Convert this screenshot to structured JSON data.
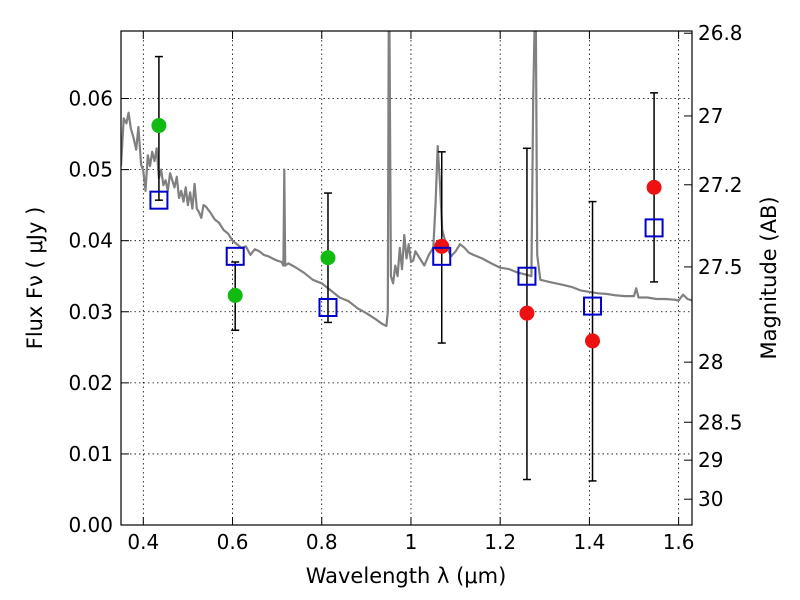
{
  "chart_data": {
    "type": "scatter",
    "xlabel": "Wavelength  λ (μm)",
    "ylabel": "Flux  Fν  ( μJy )",
    "ylabel_right": "Magnitude (AB)",
    "xlim": [
      0.35,
      1.63
    ],
    "ylim": [
      0.0,
      0.0695
    ],
    "grid": true,
    "x_ticks": [
      {
        "value": 0.4,
        "label": "0.4"
      },
      {
        "value": 0.6,
        "label": "0.6"
      },
      {
        "value": 0.8,
        "label": "0.8"
      },
      {
        "value": 1.0,
        "label": "1"
      },
      {
        "value": 1.2,
        "label": "1.2"
      },
      {
        "value": 1.4,
        "label": "1.4"
      },
      {
        "value": 1.6,
        "label": "1.6"
      }
    ],
    "y_ticks": [
      {
        "value": 0.0,
        "label": "0.00"
      },
      {
        "value": 0.01,
        "label": "0.01"
      },
      {
        "value": 0.02,
        "label": "0.02"
      },
      {
        "value": 0.03,
        "label": "0.03"
      },
      {
        "value": 0.04,
        "label": "0.04"
      },
      {
        "value": 0.05,
        "label": "0.05"
      },
      {
        "value": 0.06,
        "label": "0.06"
      }
    ],
    "y_right_ticks": [
      {
        "value": 26.8,
        "label": "26.8"
      },
      {
        "value": 27.0,
        "label": "27"
      },
      {
        "value": 27.2,
        "label": "27.2"
      },
      {
        "value": 27.5,
        "label": "27.5"
      },
      {
        "value": 28.0,
        "label": "28"
      },
      {
        "value": 28.5,
        "label": "28.5"
      },
      {
        "value": 29.0,
        "label": "29"
      },
      {
        "value": 30.0,
        "label": "30"
      }
    ],
    "colors": {
      "green": "#11bb11",
      "red": "#ee1111",
      "blue": "#0000cc",
      "spectrum": "#808080",
      "errorbar": "#000000"
    },
    "series": [
      {
        "marker": "circle",
        "color": "green",
        "points": [
          {
            "x": 0.435,
            "y": 0.0562
          },
          {
            "x": 0.606,
            "y": 0.0323
          },
          {
            "x": 0.814,
            "y": 0.0376
          }
        ]
      },
      {
        "marker": "circle",
        "color": "red",
        "points": [
          {
            "x": 1.069,
            "y": 0.0392
          },
          {
            "x": 1.26,
            "y": 0.0298
          },
          {
            "x": 1.407,
            "y": 0.0259
          },
          {
            "x": 1.545,
            "y": 0.0475
          }
        ]
      },
      {
        "marker": "open-square",
        "color": "blue",
        "points": [
          {
            "x": 0.435,
            "y": 0.0457
          },
          {
            "x": 0.606,
            "y": 0.0378
          },
          {
            "x": 0.814,
            "y": 0.0306
          },
          {
            "x": 1.069,
            "y": 0.0378
          },
          {
            "x": 1.26,
            "y": 0.035
          },
          {
            "x": 1.407,
            "y": 0.0308
          },
          {
            "x": 1.545,
            "y": 0.0418
          }
        ]
      }
    ],
    "error_bars": [
      {
        "x": 0.435,
        "low": 0.0457,
        "high": 0.0659
      },
      {
        "x": 0.606,
        "low": 0.0274,
        "high": 0.037
      },
      {
        "x": 0.814,
        "low": 0.0285,
        "high": 0.0467
      },
      {
        "x": 1.069,
        "low": 0.0256,
        "high": 0.0525
      },
      {
        "x": 1.26,
        "low": 0.0064,
        "high": 0.053
      },
      {
        "x": 1.407,
        "low": 0.0062,
        "high": 0.0455
      },
      {
        "x": 1.545,
        "low": 0.0342,
        "high": 0.0608
      }
    ],
    "spectrum": [
      [
        0.35,
        0.0505
      ],
      [
        0.356,
        0.0572
      ],
      [
        0.362,
        0.0565
      ],
      [
        0.367,
        0.058
      ],
      [
        0.372,
        0.0558
      ],
      [
        0.378,
        0.0545
      ],
      [
        0.384,
        0.0528
      ],
      [
        0.389,
        0.056
      ],
      [
        0.395,
        0.0507
      ],
      [
        0.4,
        0.0498
      ],
      [
        0.405,
        0.047
      ],
      [
        0.41,
        0.052
      ],
      [
        0.415,
        0.0505
      ],
      [
        0.42,
        0.0525
      ],
      [
        0.425,
        0.0512
      ],
      [
        0.43,
        0.053
      ],
      [
        0.435,
        0.0488
      ],
      [
        0.44,
        0.05
      ],
      [
        0.445,
        0.0478
      ],
      [
        0.45,
        0.0485
      ],
      [
        0.455,
        0.047
      ],
      [
        0.46,
        0.0495
      ],
      [
        0.465,
        0.0485
      ],
      [
        0.47,
        0.0475
      ],
      [
        0.475,
        0.049
      ],
      [
        0.48,
        0.046
      ],
      [
        0.485,
        0.047
      ],
      [
        0.49,
        0.0455
      ],
      [
        0.495,
        0.0475
      ],
      [
        0.5,
        0.045
      ],
      [
        0.505,
        0.0468
      ],
      [
        0.51,
        0.0445
      ],
      [
        0.515,
        0.048
      ],
      [
        0.52,
        0.0445
      ],
      [
        0.525,
        0.044
      ],
      [
        0.53,
        0.0432
      ],
      [
        0.535,
        0.045
      ],
      [
        0.54,
        0.0448
      ],
      [
        0.55,
        0.044
      ],
      [
        0.56,
        0.043
      ],
      [
        0.57,
        0.0425
      ],
      [
        0.58,
        0.0415
      ],
      [
        0.59,
        0.041
      ],
      [
        0.6,
        0.04
      ],
      [
        0.61,
        0.0395
      ],
      [
        0.62,
        0.039
      ],
      [
        0.63,
        0.0392
      ],
      [
        0.64,
        0.038
      ],
      [
        0.65,
        0.0388
      ],
      [
        0.66,
        0.0385
      ],
      [
        0.67,
        0.038
      ],
      [
        0.68,
        0.0378
      ],
      [
        0.69,
        0.0375
      ],
      [
        0.7,
        0.0372
      ],
      [
        0.71,
        0.037
      ],
      [
        0.714,
        0.0365
      ],
      [
        0.716,
        0.05
      ],
      [
        0.718,
        0.0365
      ],
      [
        0.725,
        0.0368
      ],
      [
        0.74,
        0.0363
      ],
      [
        0.76,
        0.0355
      ],
      [
        0.78,
        0.0345
      ],
      [
        0.8,
        0.034
      ],
      [
        0.82,
        0.033
      ],
      [
        0.84,
        0.032
      ],
      [
        0.86,
        0.0315
      ],
      [
        0.88,
        0.0305
      ],
      [
        0.9,
        0.0298
      ],
      [
        0.92,
        0.029
      ],
      [
        0.935,
        0.0283
      ],
      [
        0.945,
        0.028
      ],
      [
        0.948,
        0.03
      ],
      [
        0.95,
        0.0695
      ],
      [
        0.952,
        0.0695
      ],
      [
        0.955,
        0.035
      ],
      [
        0.96,
        0.034
      ],
      [
        0.965,
        0.0365
      ],
      [
        0.97,
        0.035
      ],
      [
        0.975,
        0.039
      ],
      [
        0.98,
        0.036
      ],
      [
        0.985,
        0.0408
      ],
      [
        0.99,
        0.0375
      ],
      [
        0.995,
        0.0395
      ],
      [
        1.0,
        0.037
      ],
      [
        1.005,
        0.0372
      ],
      [
        1.01,
        0.0385
      ],
      [
        1.02,
        0.0375
      ],
      [
        1.03,
        0.0365
      ],
      [
        1.04,
        0.038
      ],
      [
        1.05,
        0.039
      ],
      [
        1.055,
        0.045
      ],
      [
        1.06,
        0.0533
      ],
      [
        1.065,
        0.048
      ],
      [
        1.07,
        0.0415
      ],
      [
        1.08,
        0.0392
      ],
      [
        1.09,
        0.0378
      ],
      [
        1.1,
        0.0385
      ],
      [
        1.11,
        0.0395
      ],
      [
        1.12,
        0.039
      ],
      [
        1.13,
        0.0383
      ],
      [
        1.14,
        0.038
      ],
      [
        1.16,
        0.0375
      ],
      [
        1.18,
        0.0368
      ],
      [
        1.2,
        0.0362
      ],
      [
        1.22,
        0.036
      ],
      [
        1.24,
        0.0355
      ],
      [
        1.26,
        0.0352
      ],
      [
        1.27,
        0.035
      ],
      [
        1.274,
        0.06
      ],
      [
        1.277,
        0.0695
      ],
      [
        1.28,
        0.0695
      ],
      [
        1.283,
        0.038
      ],
      [
        1.29,
        0.0345
      ],
      [
        1.31,
        0.0342
      ],
      [
        1.34,
        0.0338
      ],
      [
        1.36,
        0.0335
      ],
      [
        1.38,
        0.033
      ],
      [
        1.4,
        0.0328
      ],
      [
        1.42,
        0.0326
      ],
      [
        1.44,
        0.0325
      ],
      [
        1.46,
        0.0323
      ],
      [
        1.48,
        0.0322
      ],
      [
        1.5,
        0.0322
      ],
      [
        1.505,
        0.0333
      ],
      [
        1.51,
        0.032
      ],
      [
        1.53,
        0.032
      ],
      [
        1.55,
        0.0318
      ],
      [
        1.57,
        0.0318
      ],
      [
        1.59,
        0.0317
      ],
      [
        1.6,
        0.0316
      ],
      [
        1.61,
        0.0324
      ],
      [
        1.62,
        0.0318
      ],
      [
        1.63,
        0.0316
      ]
    ]
  }
}
